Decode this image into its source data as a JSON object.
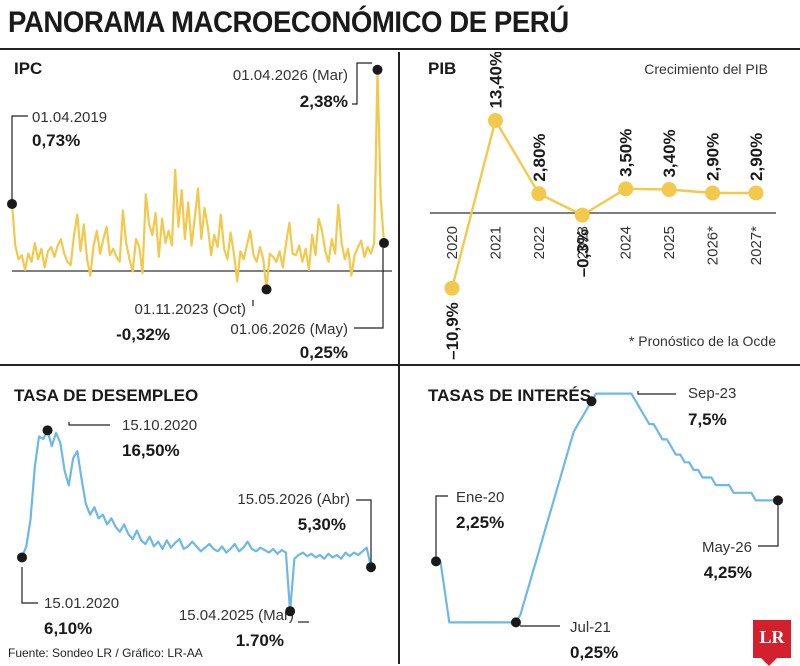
{
  "title": "PANORAMA MACROECONÓMICO DE PERÚ",
  "source": "Fuente: Sondeo LR / Gráfico: LR-AA",
  "logo": "LR",
  "colors": {
    "ipc": "#f2c94c",
    "pib": "#f2c94c",
    "desempleo": "#6cb8e6",
    "tasas": "#6cb8e6",
    "ink": "#1a1a1a"
  },
  "chart_data": [
    {
      "id": "ipc",
      "type": "line",
      "title": "IPC",
      "callouts": [
        {
          "date": "01.04.2019",
          "value": "0,73%"
        },
        {
          "date": "01.04.2026 (Mar)",
          "value": "2,38%"
        },
        {
          "date": "01.11.2023 (Oct)",
          "value": "-0,32%"
        },
        {
          "date": "01.06.2026 (May)",
          "value": "0,25%"
        }
      ],
      "values": [
        0.73,
        0.22,
        0.05,
        0.1,
        -0.08,
        0.12,
        0.02,
        0.25,
        0.05,
        0.18,
        -0.05,
        0.15,
        0.2,
        0.08,
        0.22,
        0.3,
        0.12,
        0.02,
        -0.02,
        0.35,
        0.6,
        0.15,
        0.48,
        0.05,
        -0.15,
        0.22,
        0.4,
        0.12,
        0.3,
        0.45,
        0.1,
        0.18,
        0.08,
        0.02,
        0.65,
        0.25,
        0.05,
        -0.1,
        0.3,
        0.2,
        -0.12,
        0.85,
        0.48,
        0.35,
        0.62,
        0.08,
        0.55,
        0.25,
        0.4,
        0.22,
        1.15,
        0.45,
        0.9,
        0.3,
        0.75,
        0.22,
        0.55,
        0.92,
        0.3,
        0.68,
        0.45,
        0.1,
        0.35,
        0.2,
        0.6,
        0.18,
        0.05,
        0.38,
        0.12,
        -0.22,
        0.15,
        0.05,
        0.22,
        0.4,
        0.1,
        0.02,
        0.2,
        0.05,
        -0.32,
        0.12,
        0.08,
        0.02,
        0.15,
        -0.05,
        0.25,
        0.5,
        0.12,
        0.1,
        0.22,
        0.02,
        0.18,
        -0.08,
        0.35,
        0.1,
        0.55,
        0.4,
        0.15,
        0.02,
        0.3,
        0.12,
        0.72,
        0.25,
        0.05,
        0.18,
        -0.15,
        0.1,
        0.2,
        0.28,
        0.08,
        0.2,
        0.12,
        0.25,
        2.38,
        0.8,
        0.25
      ],
      "ylim": [
        -0.45,
        2.45
      ]
    },
    {
      "id": "pib",
      "type": "line",
      "title": "PIB",
      "subtitle": "Crecimiento del PIB",
      "note": "* Pronóstico de la Ocde",
      "categories": [
        "2020",
        "2021",
        "2022",
        "2023",
        "2024",
        "2025",
        "2026*",
        "2027*"
      ],
      "values": [
        -10.9,
        13.4,
        2.8,
        -0.3,
        3.5,
        3.4,
        2.9,
        2.9
      ],
      "labels": [
        "–10,9%",
        "13,40%",
        "2,80%",
        "–0,3%",
        "3,50%",
        "3,40%",
        "2,90%",
        "2,90%"
      ]
    },
    {
      "id": "desempleo",
      "type": "line",
      "title": "TASA DE DESEMPLEO",
      "callouts": [
        {
          "date": "15.10.2020",
          "value": "16,50%"
        },
        {
          "date": "15.05.2026 (Abr)",
          "value": "5,30%"
        },
        {
          "date": "15.01.2020",
          "value": "6,10%"
        },
        {
          "date": "15.04.2025 (Mar)",
          "value": "1,70%"
        }
      ],
      "values": [
        6.1,
        7.0,
        9.2,
        13.5,
        16.0,
        15.8,
        16.5,
        15.2,
        16.3,
        15.5,
        13.2,
        12.0,
        14.2,
        14.8,
        12.5,
        10.5,
        9.6,
        10.2,
        9.3,
        9.6,
        8.8,
        9.3,
        8.6,
        8.2,
        8.8,
        8.0,
        7.6,
        8.3,
        7.5,
        7.2,
        7.8,
        7.0,
        7.4,
        6.8,
        7.5,
        6.9,
        7.3,
        7.6,
        6.8,
        7.0,
        7.4,
        7.0,
        6.6,
        6.9,
        7.2,
        6.8,
        6.6,
        7.0,
        6.5,
        6.8,
        7.2,
        6.6,
        6.9,
        7.4,
        6.8,
        6.6,
        6.9,
        6.7,
        6.5,
        6.8,
        6.4,
        6.7,
        6.5,
        1.7,
        6.0,
        6.3,
        6.5,
        6.2,
        6.4,
        6.1,
        6.3,
        6.0,
        6.4,
        6.1,
        6.3,
        6.0,
        6.5,
        6.2,
        6.5,
        6.3,
        6.6,
        6.9,
        5.3
      ],
      "ylim": [
        0,
        18
      ]
    },
    {
      "id": "tasas",
      "type": "line",
      "title": "TASAS DE INTERÉS",
      "callouts": [
        {
          "date": "Sep-23",
          "value": "7,5%"
        },
        {
          "date": "Ene-20",
          "value": "2,25%"
        },
        {
          "date": "May-26",
          "value": "4,25%"
        },
        {
          "date": "Jul-21",
          "value": "0,25%"
        }
      ],
      "values": [
        2.25,
        2.25,
        1.25,
        0.25,
        0.25,
        0.25,
        0.25,
        0.25,
        0.25,
        0.25,
        0.25,
        0.25,
        0.25,
        0.25,
        0.25,
        0.25,
        0.25,
        0.25,
        0.25,
        0.5,
        1.0,
        1.5,
        2.0,
        2.5,
        3.0,
        3.5,
        4.0,
        4.5,
        5.0,
        5.5,
        6.0,
        6.5,
        6.75,
        7.0,
        7.25,
        7.5,
        7.75,
        7.75,
        7.75,
        7.75,
        7.75,
        7.75,
        7.75,
        7.75,
        7.75,
        7.5,
        7.25,
        7.0,
        6.75,
        6.75,
        6.5,
        6.25,
        6.25,
        6.0,
        5.75,
        5.75,
        5.5,
        5.5,
        5.25,
        5.25,
        5.0,
        5.0,
        5.0,
        4.75,
        4.75,
        4.75,
        4.75,
        4.5,
        4.5,
        4.5,
        4.5,
        4.5,
        4.25,
        4.25,
        4.25,
        4.25,
        4.25,
        4.25
      ],
      "ylim": [
        0,
        8
      ]
    }
  ]
}
